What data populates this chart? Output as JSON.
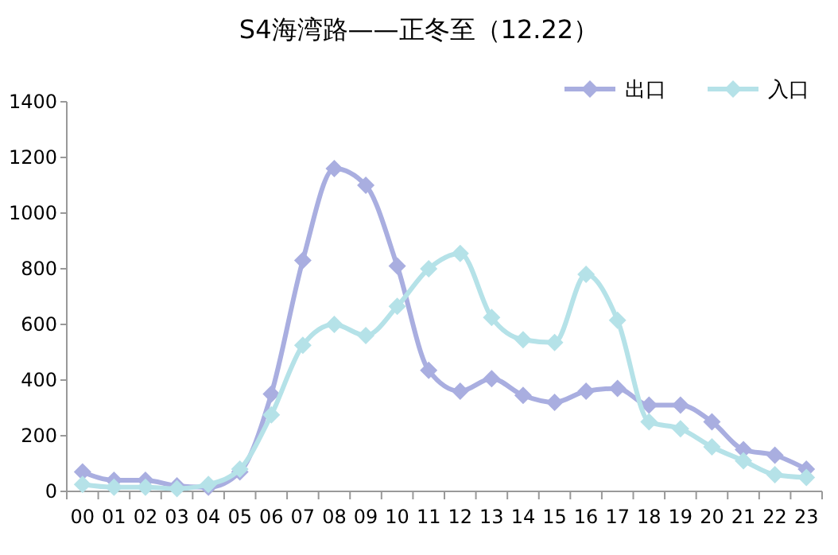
{
  "chart_data": {
    "type": "line",
    "title": "S4海湾路——正冬至（12.22）",
    "categories": [
      "00",
      "01",
      "02",
      "03",
      "04",
      "05",
      "06",
      "07",
      "08",
      "09",
      "10",
      "11",
      "12",
      "13",
      "14",
      "15",
      "16",
      "17",
      "18",
      "19",
      "20",
      "21",
      "22",
      "23"
    ],
    "series": [
      {
        "name": "出口",
        "color": "#a9aee0",
        "values": [
          70,
          40,
          40,
          20,
          15,
          70,
          350,
          830,
          1160,
          1100,
          810,
          435,
          360,
          405,
          345,
          320,
          360,
          370,
          310,
          310,
          250,
          150,
          130,
          80
        ]
      },
      {
        "name": "入口",
        "color": "#b5e2e8",
        "values": [
          25,
          15,
          15,
          10,
          25,
          80,
          275,
          525,
          600,
          560,
          665,
          800,
          855,
          625,
          545,
          535,
          780,
          615,
          250,
          225,
          160,
          110,
          60,
          50
        ]
      }
    ],
    "ylim": [
      0,
      1400
    ],
    "yticks": [
      0,
      200,
      400,
      600,
      800,
      1000,
      1200,
      1400
    ],
    "grid": false,
    "legend": "top right",
    "marker": "diamond",
    "line_style": "solid"
  }
}
